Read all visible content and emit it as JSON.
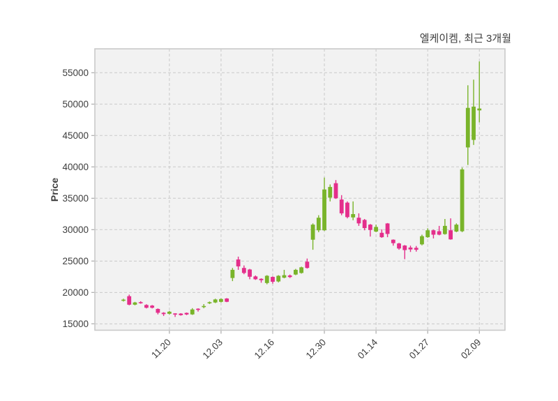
{
  "title": "엘케이켐, 최근 3개월",
  "colors": {
    "up": "#79b42a",
    "down": "#e42e8b",
    "grid": "#c9c9c9",
    "spine": "#c9c9c9",
    "tick_mark": "#ababab",
    "plot_bg": "#f2f2f2",
    "text": "#3d3d3d",
    "page_bg": "#ffffff"
  },
  "chart_data": {
    "type": "candlestick",
    "title": "엘케이켐, 최근 3개월",
    "ylabel": "Price",
    "xlabel": "",
    "grid": "dashed-both-axes",
    "legend": "none",
    "ylim": [
      13980,
      58810
    ],
    "y_ticks": [
      15000,
      20000,
      25000,
      30000,
      35000,
      40000,
      45000,
      50000,
      55000
    ],
    "x_tick_labels": [
      "11.20",
      "12.03",
      "12.16",
      "12.30",
      "01.14",
      "01.27",
      "02.09"
    ],
    "x_tick_indices": [
      8,
      17,
      26,
      35,
      44,
      53,
      62
    ],
    "candle_format": [
      "open",
      "high",
      "low",
      "close"
    ],
    "candles": [
      [
        18700,
        19000,
        18550,
        18850
      ],
      [
        19400,
        19650,
        17950,
        18050
      ],
      [
        18050,
        18500,
        17950,
        18400
      ],
      [
        18450,
        18600,
        18200,
        18300
      ],
      [
        18000,
        18120,
        17450,
        17560
      ],
      [
        17900,
        18000,
        17450,
        17560
      ],
      [
        17370,
        17450,
        16500,
        16760
      ],
      [
        16760,
        16850,
        16250,
        16550
      ],
      [
        16600,
        17050,
        16500,
        16930
      ],
      [
        16650,
        16700,
        16100,
        16480
      ],
      [
        16630,
        16700,
        16300,
        16380
      ],
      [
        16740,
        16800,
        16380,
        16490
      ],
      [
        16500,
        17500,
        16420,
        17290
      ],
      [
        17400,
        17480,
        16950,
        17230
      ],
      [
        17700,
        18140,
        17480,
        17840
      ],
      [
        18300,
        18560,
        18150,
        18440
      ],
      [
        18400,
        19000,
        18300,
        18880
      ],
      [
        18500,
        19050,
        18400,
        18950
      ],
      [
        19030,
        19100,
        18450,
        18510
      ],
      [
        22300,
        23900,
        21800,
        23600
      ],
      [
        25250,
        25700,
        23600,
        24150
      ],
      [
        23900,
        24300,
        22900,
        23100
      ],
      [
        23650,
        23750,
        22100,
        22500
      ],
      [
        22550,
        22700,
        22000,
        22100
      ],
      [
        22170,
        22250,
        21550,
        21950
      ],
      [
        21500,
        22750,
        21300,
        22650
      ],
      [
        22470,
        22550,
        21400,
        21700
      ],
      [
        21750,
        22750,
        21600,
        22650
      ],
      [
        22350,
        23600,
        22250,
        22750
      ],
      [
        22700,
        22850,
        22300,
        22450
      ],
      [
        22850,
        23750,
        22750,
        23600
      ],
      [
        23100,
        24100,
        23000,
        24000
      ],
      [
        24900,
        25400,
        23800,
        23900
      ],
      [
        28400,
        31000,
        26800,
        30800
      ],
      [
        29900,
        32300,
        29600,
        31900
      ],
      [
        29900,
        38300,
        29800,
        36400
      ],
      [
        35100,
        37200,
        34500,
        36800
      ],
      [
        37400,
        37900,
        34900,
        35000
      ],
      [
        34800,
        35500,
        32300,
        32600
      ],
      [
        34300,
        34500,
        31800,
        32000
      ],
      [
        31950,
        34500,
        31500,
        32480
      ],
      [
        31900,
        32600,
        30600,
        31000
      ],
      [
        31550,
        31700,
        29900,
        30250
      ],
      [
        30800,
        30900,
        28900,
        29950
      ],
      [
        29700,
        30800,
        29600,
        30430
      ],
      [
        29500,
        30050,
        28700,
        28800
      ],
      [
        30990,
        31050,
        28800,
        29320
      ],
      [
        28400,
        28450,
        27450,
        27850
      ],
      [
        27800,
        27900,
        26800,
        27000
      ],
      [
        27470,
        27550,
        25300,
        26750
      ],
      [
        27150,
        27450,
        26450,
        26850
      ],
      [
        27100,
        27400,
        26500,
        26800
      ],
      [
        27660,
        29200,
        27500,
        28960
      ],
      [
        28800,
        30220,
        28700,
        29900
      ],
      [
        29900,
        30000,
        28600,
        29200
      ],
      [
        29750,
        30600,
        29100,
        29200
      ],
      [
        29300,
        31700,
        29200,
        30600
      ],
      [
        29900,
        31800,
        28400,
        28450
      ],
      [
        29700,
        31000,
        29600,
        30800
      ],
      [
        29750,
        39900,
        29600,
        39600
      ],
      [
        43100,
        53000,
        40300,
        49400
      ],
      [
        44300,
        53900,
        43500,
        49600
      ],
      [
        49000,
        56800,
        47100,
        49300
      ]
    ]
  }
}
